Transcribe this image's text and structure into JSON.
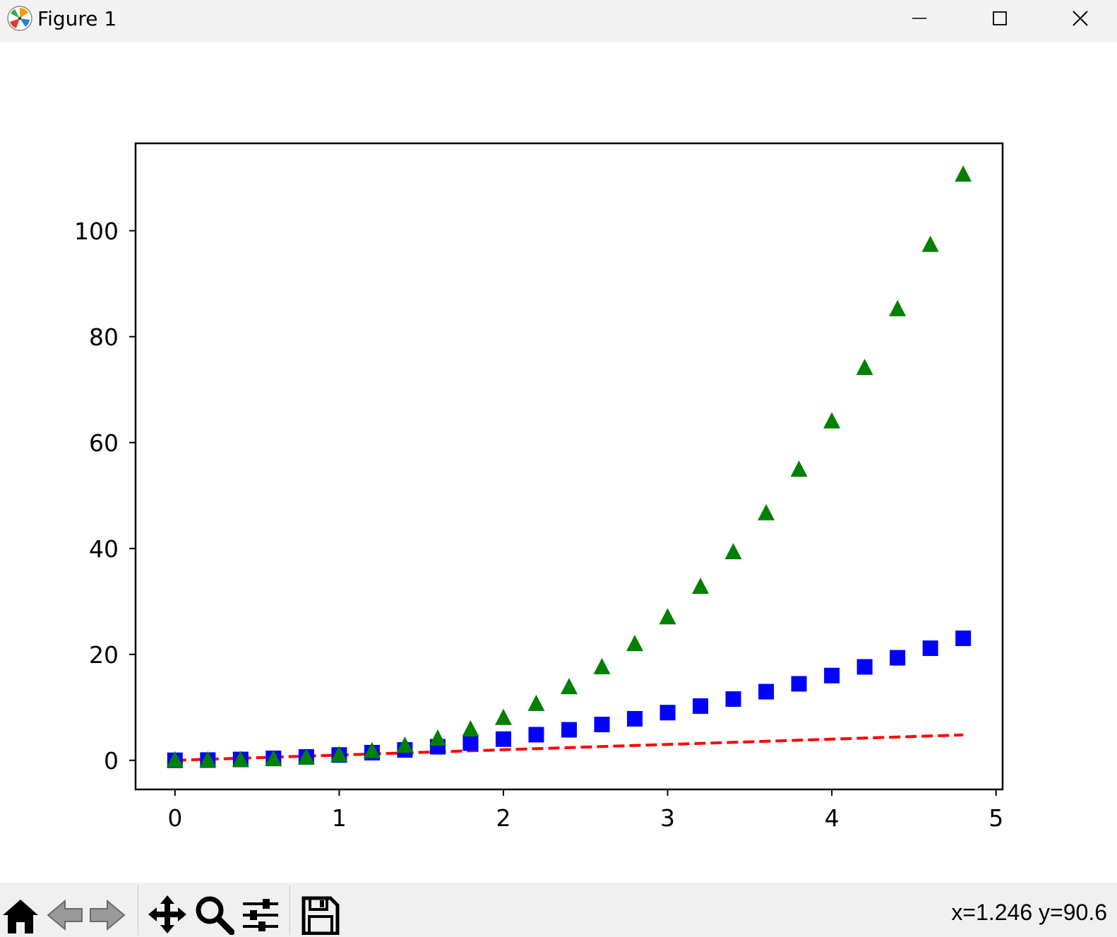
{
  "window": {
    "title": "Figure 1",
    "app_icon": "matplotlib-icon",
    "controls": [
      "minimize-icon",
      "maximize-icon",
      "close-icon"
    ]
  },
  "toolbar": {
    "buttons": [
      "home-icon",
      "back-arrow-icon",
      "forward-arrow-icon",
      "pan-move-icon",
      "zoom-magnifier-icon",
      "configure-subplots-icon",
      "save-floppy-icon"
    ],
    "coords_text": "x=1.246 y=90.6"
  },
  "chart_data": {
    "type": "scatter",
    "title": "",
    "xlabel": "",
    "ylabel": "",
    "xlim": [
      -0.24,
      5.04
    ],
    "ylim": [
      -5.5,
      116.5
    ],
    "xticks": [
      0,
      1,
      2,
      3,
      4,
      5
    ],
    "yticks": [
      0,
      20,
      40,
      60,
      80,
      100
    ],
    "grid": false,
    "legend": "none",
    "x": [
      0.0,
      0.2,
      0.4,
      0.6,
      0.8,
      1.0,
      1.2,
      1.4,
      1.6,
      1.8,
      2.0,
      2.2,
      2.4,
      2.6,
      2.8,
      3.0,
      3.2,
      3.4,
      3.6,
      3.8,
      4.0,
      4.2,
      4.4,
      4.6,
      4.8
    ],
    "series": [
      {
        "style": "dashed-line",
        "color": "#ff0000",
        "values": [
          0.0,
          0.2,
          0.4,
          0.6,
          0.8,
          1.0,
          1.2,
          1.4,
          1.6,
          1.8,
          2.0,
          2.2,
          2.4,
          2.6,
          2.8,
          3.0,
          3.2,
          3.4,
          3.6,
          3.8,
          4.0,
          4.2,
          4.4,
          4.6,
          4.8
        ]
      },
      {
        "style": "square-markers",
        "color": "#0000ff",
        "values": [
          0.0,
          0.04,
          0.16,
          0.36,
          0.64,
          1.0,
          1.44,
          1.96,
          2.56,
          3.24,
          4.0,
          4.84,
          5.76,
          6.76,
          7.84,
          9.0,
          10.24,
          11.56,
          12.96,
          14.44,
          16.0,
          17.64,
          19.36,
          21.16,
          23.04
        ]
      },
      {
        "style": "triangle-markers",
        "color": "#008000",
        "values": [
          0.0,
          0.008,
          0.064,
          0.216,
          0.512,
          1.0,
          1.728,
          2.744,
          4.096,
          5.832,
          8.0,
          10.648,
          13.824,
          17.576,
          21.952,
          27.0,
          32.768,
          39.304,
          46.656,
          54.872,
          64.0,
          74.088,
          85.184,
          97.336,
          110.592
        ]
      }
    ]
  }
}
